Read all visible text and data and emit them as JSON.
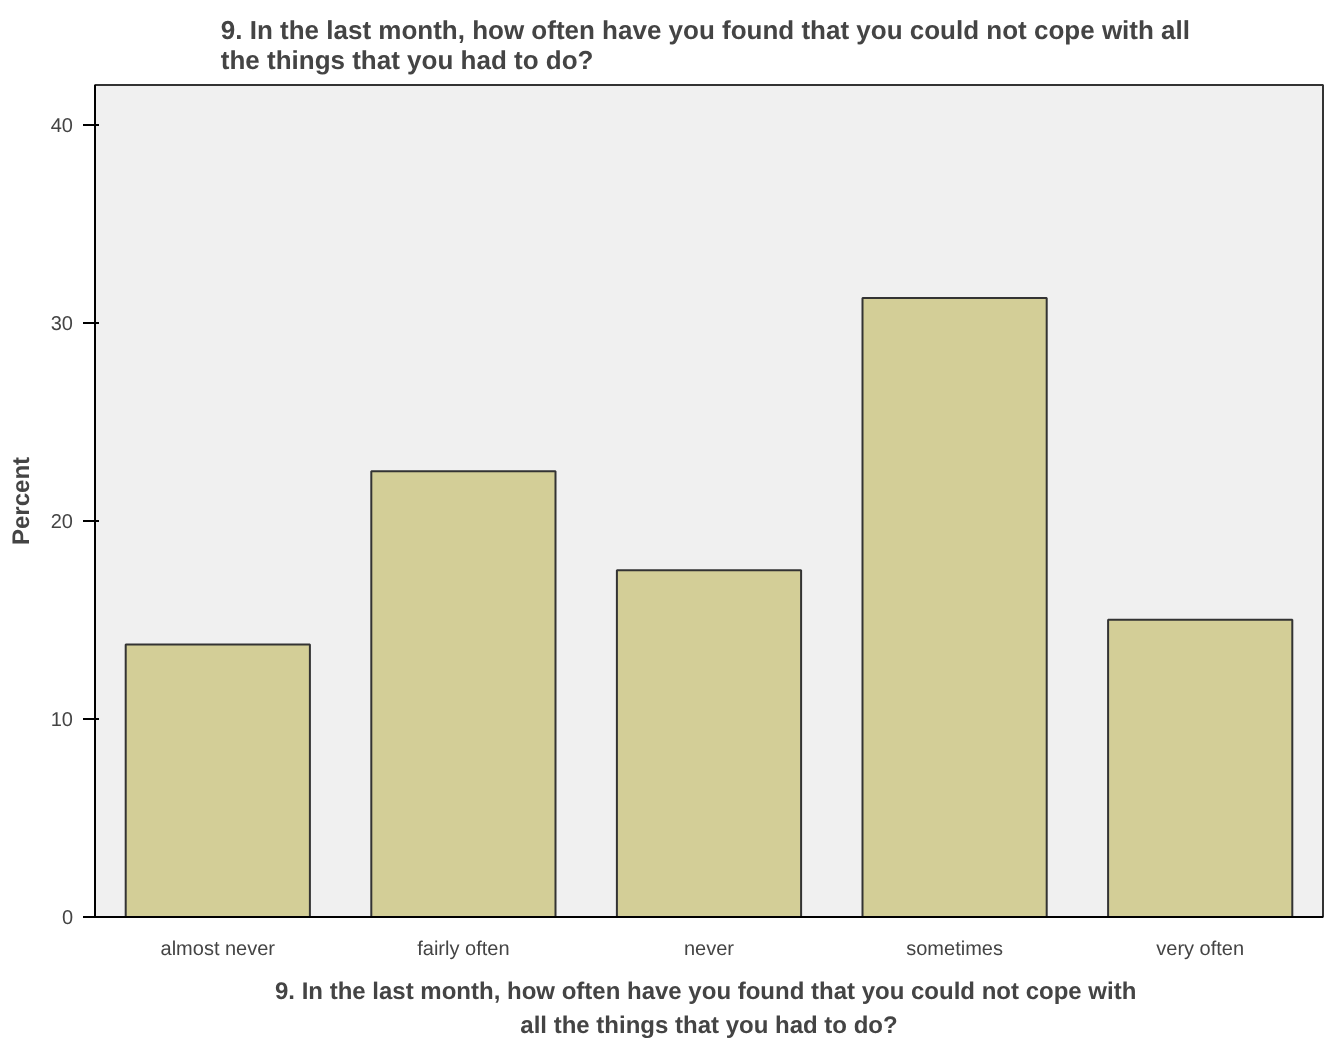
{
  "chart_data": {
    "type": "bar",
    "title": "9.  In the last month, how often have you found that you could not cope with all\nthe things that you had to do?",
    "xlabel": "9.  In the last month, how often have you found that you could not cope with\nall the things that you had to do?",
    "ylabel": "Percent",
    "categories": [
      "almost never",
      "fairly often",
      "never",
      "sometimes",
      "very often"
    ],
    "values": [
      13.75,
      22.5,
      17.5,
      31.25,
      15
    ],
    "color": "#d3ce97",
    "ylim": [
      0,
      42
    ],
    "yticks": [
      0,
      10,
      20,
      30,
      40
    ],
    "grid": false
  }
}
